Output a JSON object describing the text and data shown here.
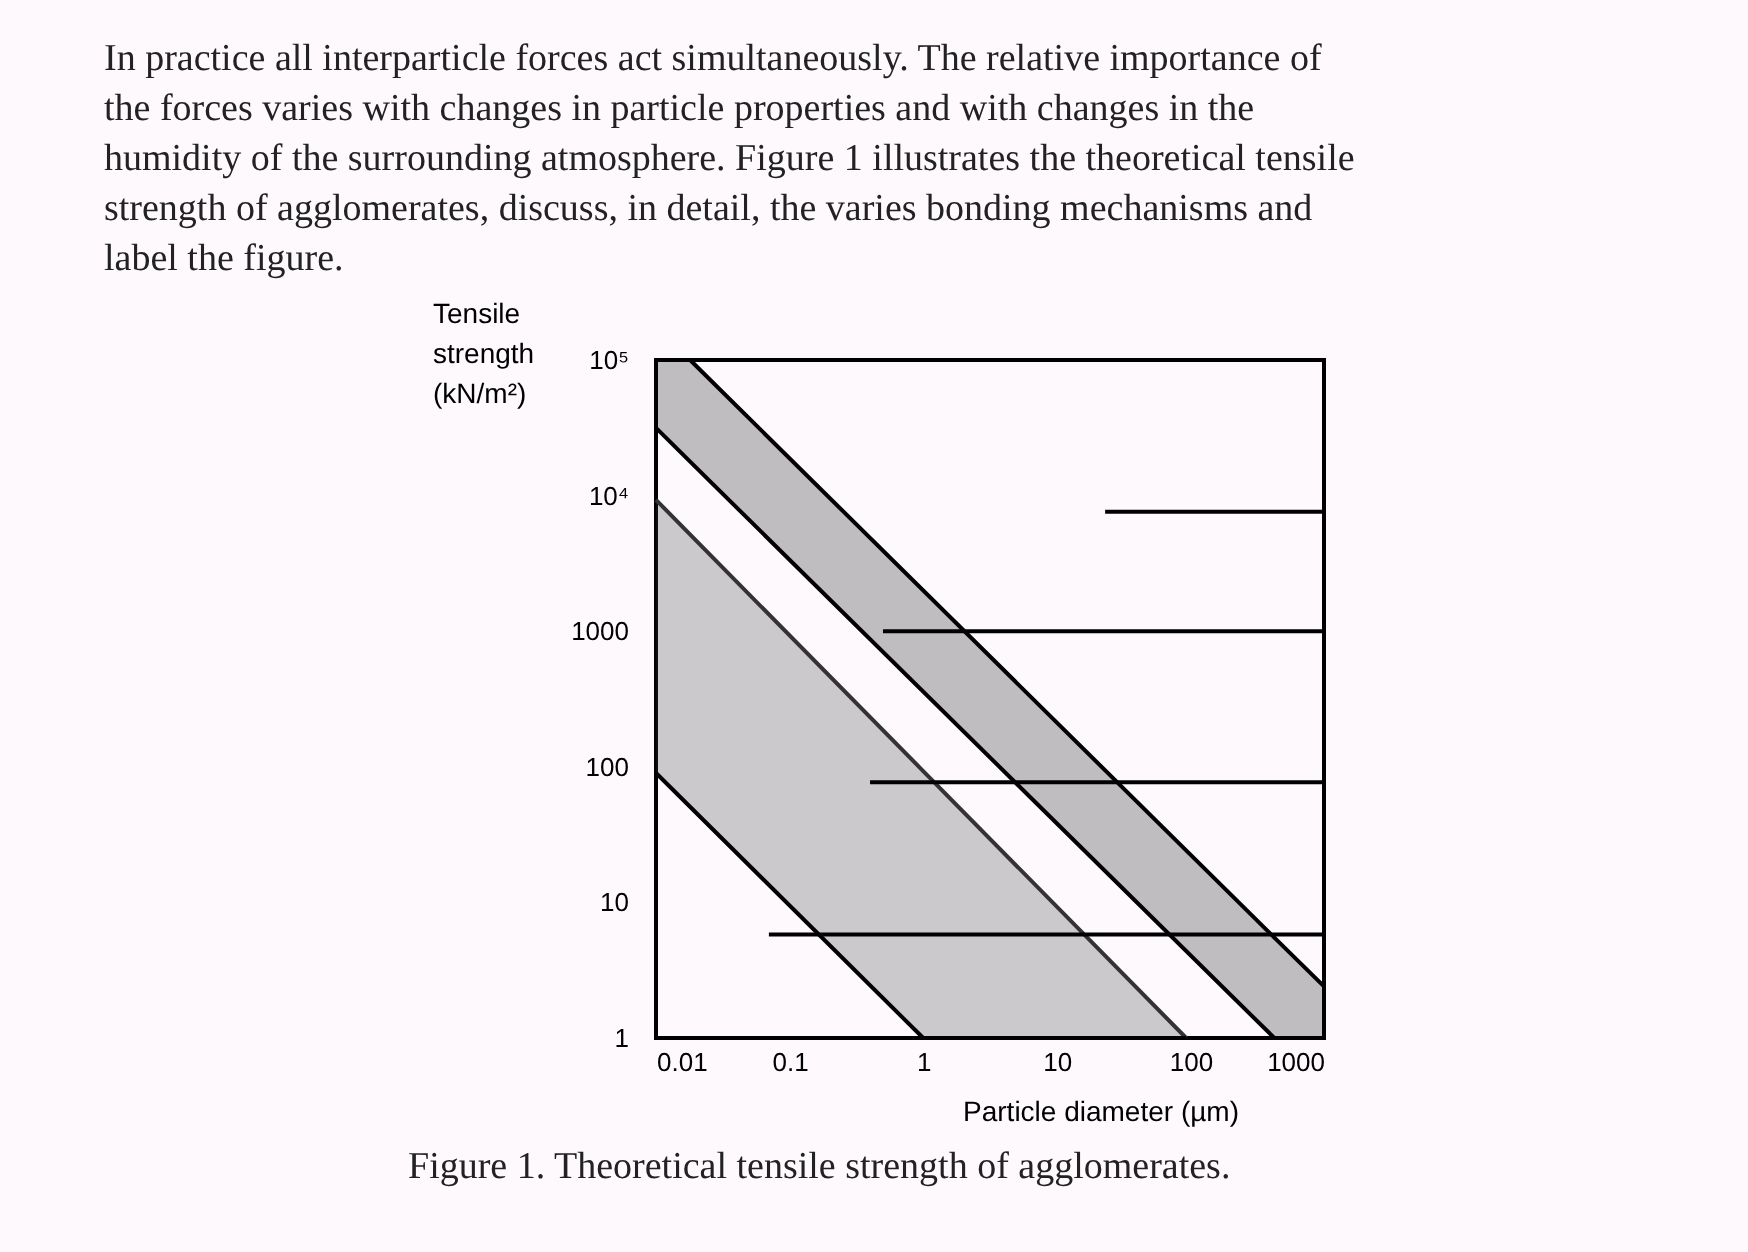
{
  "chart_data": {
    "type": "line",
    "xlabel": "Particle diameter (µm)",
    "ylabel": "Tensile strength (kN/m²)",
    "log": "xy",
    "grid": false,
    "xlim": [
      0.01,
      1000
    ],
    "ylim": [
      1,
      100000
    ],
    "xticks": [
      0.01,
      0.1,
      1,
      10,
      100,
      1000
    ],
    "yticks": [
      1,
      10,
      100,
      1000,
      {
        "value": 10000,
        "label": "10⁴"
      },
      {
        "value": 100000,
        "label": "10⁵"
      }
    ],
    "series": [
      {
        "color": "#000000",
        "x": [
          0.01,
          0.018,
          425,
          1000
        ],
        "values": [
          100000,
          100000,
          5.5,
          2.4
        ],
        "lower": [
          31600,
          17800,
          1,
          1
        ],
        "upper": [
          100000,
          100000,
          5.5,
          2.4
        ]
      },
      {
        "color": "#000000",
        "x": [
          0.01,
          0.018,
          425,
          1000
        ],
        "values": [
          31600,
          17800,
          1,
          1
        ]
      },
      {
        "color": "#333333",
        "x": [
          0.01,
          1,
          93
        ],
        "values": [
          9300,
          93,
          1
        ],
        "lower": [
          90,
          1,
          1
        ],
        "upper": [
          9300,
          93,
          1
        ]
      },
      {
        "color": "#000000",
        "x": [
          0.01,
          1,
          93
        ],
        "values": [
          90,
          1,
          1
        ]
      },
      {
        "color": "#000000",
        "x": [
          23,
          1000
        ],
        "values": [
          7600,
          7600
        ]
      },
      {
        "color": "#000000",
        "x": [
          0.5,
          1000
        ],
        "values": [
          1000,
          1000
        ]
      },
      {
        "color": "#000000",
        "x": [
          0.4,
          1000
        ],
        "values": [
          77,
          77
        ]
      },
      {
        "color": "#000000",
        "x": [
          0.07,
          1000
        ],
        "values": [
          5.8,
          5.8
        ]
      }
    ],
    "annotations": [
      "In practice all interparticle forces act simultaneously. The relative importance of the forces varies with changes in particle properties and with changes in the humidity of the surrounding atmosphere. Figure 1 illustrates the theoretical tensile strength of agglomerates, discuss, in detail, the varies bonding mechanisms and label the figure.",
      "Figure 1. Theoretical tensile strength of agglomerates."
    ]
  }
}
